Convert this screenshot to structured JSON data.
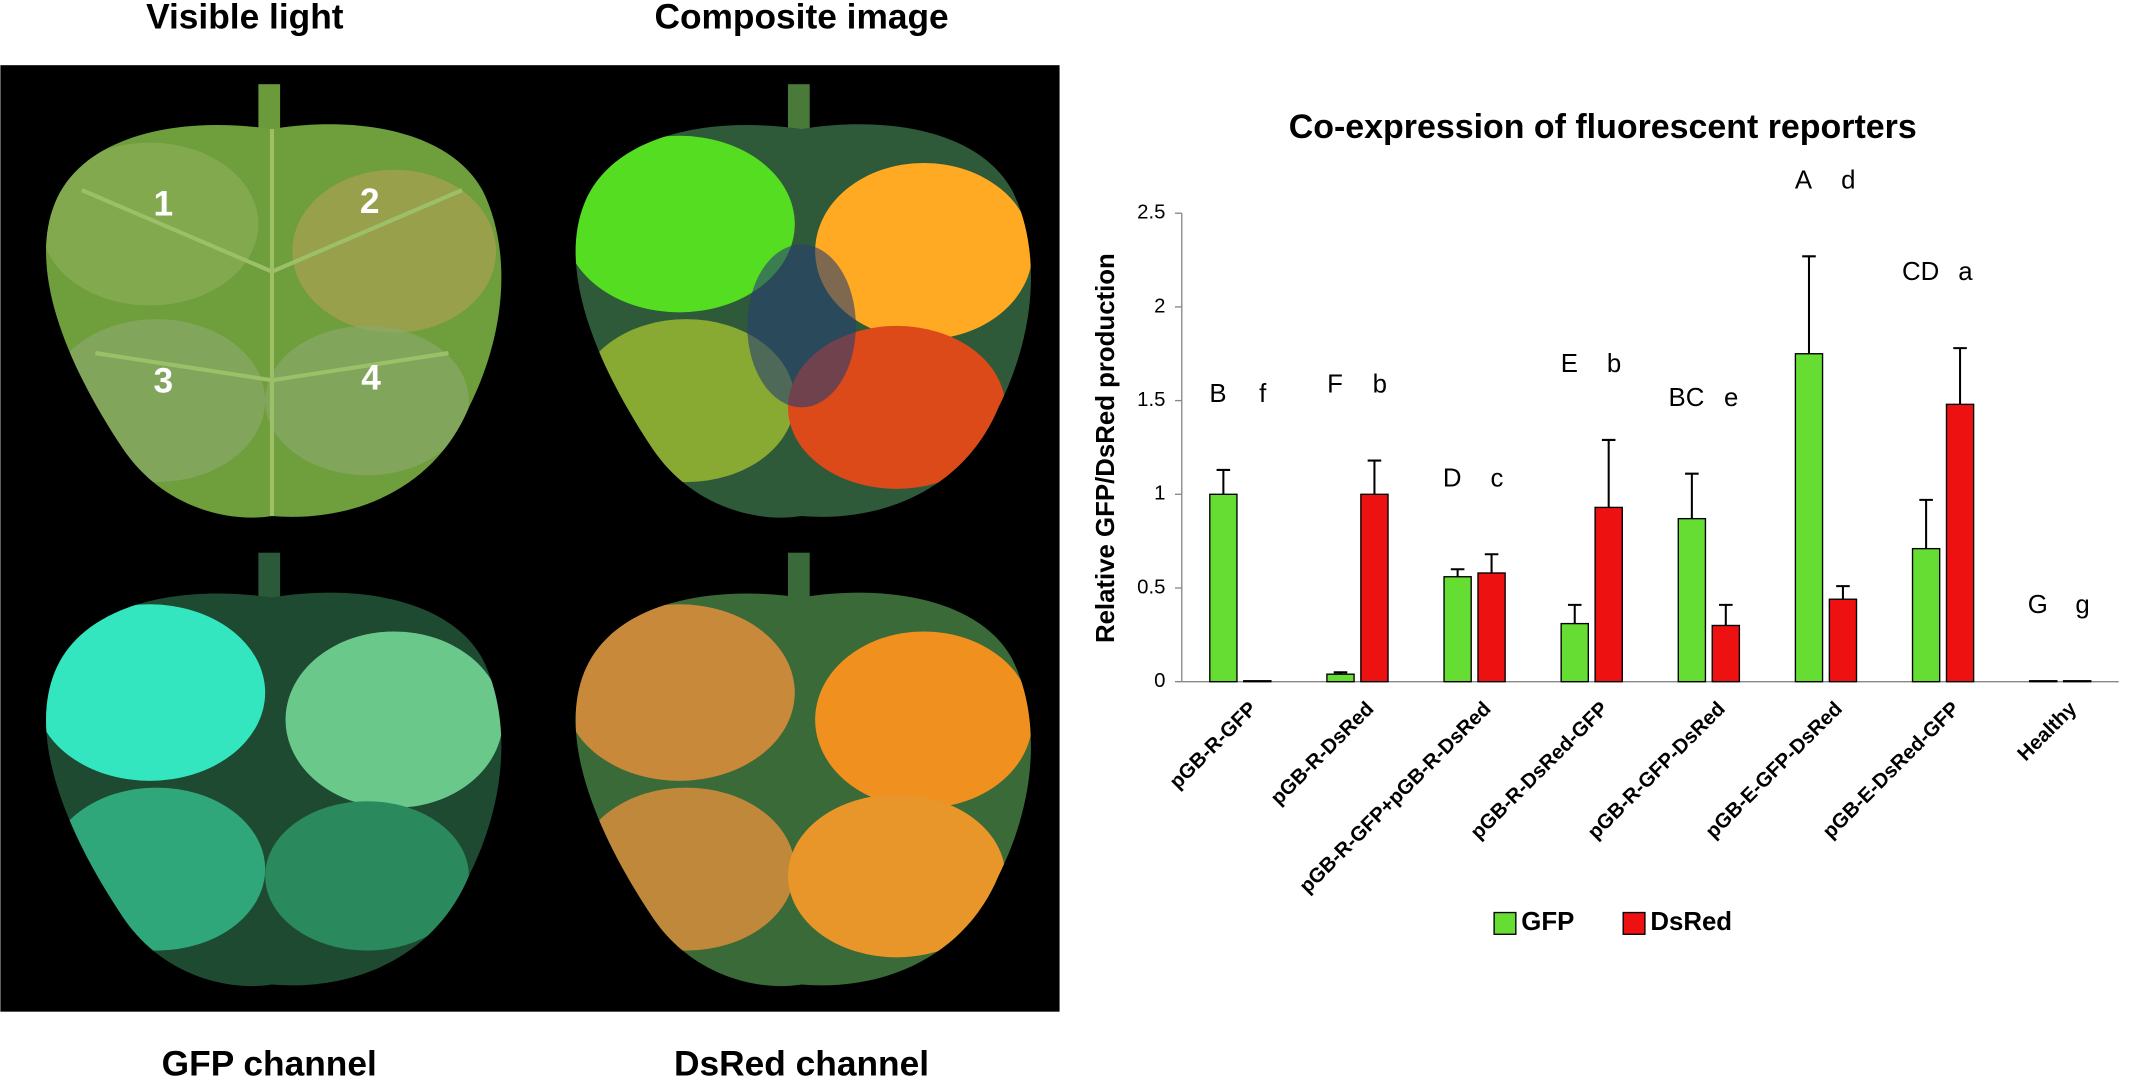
{
  "photos": {
    "titles": [
      "Visible light",
      "Composite image",
      "GFP channel",
      "DsRed channel"
    ],
    "spot_labels": [
      "1",
      "2",
      "3",
      "4"
    ]
  },
  "chart_data": {
    "type": "bar",
    "title": "Co-expression of fluorescent reporters",
    "y_label": "Relative GFP/DsRed production",
    "categories": [
      "pGB-R-GFP",
      "pGB-R-DsRed",
      "pGB-R-GFP+pGB-R-DsRed",
      "pGB-R-DsRed-GFP",
      "pGB-R-GFP-DsRed",
      "pGB-E-GFP-DsRed",
      "pGB-E-DsRed-GFP",
      "Healthy"
    ],
    "series": [
      {
        "name": "GFP",
        "color": "#66dd33",
        "values": [
          1.0,
          0.04,
          0.56,
          0.31,
          0.87,
          1.75,
          0.71,
          0.005
        ],
        "errors": [
          0.13,
          0.01,
          0.04,
          0.1,
          0.24,
          0.52,
          0.26,
          0
        ],
        "letters": [
          "B",
          "F",
          "D",
          "E",
          "BC",
          "A",
          "CD",
          "G"
        ]
      },
      {
        "name": "DsRed",
        "color": "#ee1111",
        "values": [
          0.005,
          1.0,
          0.58,
          0.93,
          0.3,
          0.44,
          1.48,
          0.005
        ],
        "errors": [
          0,
          0.18,
          0.1,
          0.36,
          0.11,
          0.07,
          0.3,
          0
        ],
        "letters": [
          "f",
          "b",
          "c",
          "b",
          "e",
          "d",
          "a",
          "g"
        ]
      }
    ],
    "ylim": [
      0,
      2.5
    ],
    "yticks": [
      0,
      0.5,
      1,
      1.5,
      2,
      2.5
    ],
    "grid": false,
    "legend": "bottom"
  }
}
